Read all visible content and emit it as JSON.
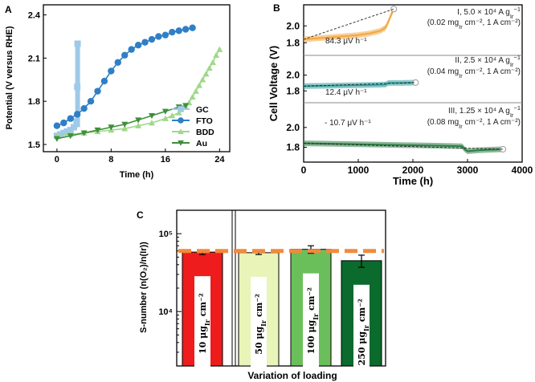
{
  "chart_data": [
    {
      "panel": "A",
      "type": "line",
      "xlabel": "Time (h)",
      "ylabel": "Potential (V versus RHE)",
      "xlim": [
        -2,
        25.5
      ],
      "ylim": [
        1.45,
        2.47
      ],
      "xticks": [
        "0",
        "8",
        "16",
        "24"
      ],
      "yticks": [
        "1.5",
        "1.8",
        "2.1",
        "2.4"
      ],
      "legend_position": "bottom-right",
      "series": [
        {
          "name": "GC",
          "color": "#9ecae8",
          "marker": "square",
          "x": [
            0,
            0.5,
            1,
            1.5,
            2,
            2.5,
            2.9,
            3.0,
            3.05
          ],
          "y": [
            1.56,
            1.57,
            1.58,
            1.59,
            1.6,
            1.62,
            1.66,
            1.9,
            2.2
          ]
        },
        {
          "name": "FTO",
          "color": "#2f7fc6",
          "marker": "circle",
          "x": [
            0,
            1,
            2,
            3,
            4,
            5,
            6,
            7,
            8,
            9,
            10,
            11,
            12,
            13,
            14,
            15,
            16,
            17,
            18,
            19,
            20
          ],
          "y": [
            1.63,
            1.65,
            1.68,
            1.71,
            1.75,
            1.8,
            1.87,
            1.94,
            2.01,
            2.07,
            2.12,
            2.16,
            2.19,
            2.21,
            2.23,
            2.25,
            2.26,
            2.28,
            2.29,
            2.3,
            2.31
          ]
        },
        {
          "name": "BDD",
          "color": "#9fd88a",
          "marker": "triangle-up",
          "x": [
            0,
            2,
            4,
            6,
            8,
            10,
            12,
            14,
            16,
            17,
            18,
            19,
            19.5,
            20,
            20.5,
            21,
            21.5,
            22,
            22.5,
            23,
            23.5,
            24
          ],
          "y": [
            1.56,
            1.57,
            1.58,
            1.59,
            1.6,
            1.61,
            1.63,
            1.65,
            1.68,
            1.7,
            1.72,
            1.76,
            1.79,
            1.83,
            1.87,
            1.91,
            1.95,
            1.99,
            2.03,
            2.07,
            2.12,
            2.16
          ]
        },
        {
          "name": "Au",
          "color": "#3f8f3a",
          "marker": "triangle-down",
          "x": [
            0,
            2,
            4,
            6,
            8,
            10,
            12,
            14,
            16,
            18,
            19
          ],
          "y": [
            1.54,
            1.56,
            1.58,
            1.6,
            1.62,
            1.64,
            1.67,
            1.7,
            1.73,
            1.76,
            1.77
          ]
        }
      ]
    },
    {
      "panel": "B",
      "type": "line",
      "xlabel": "Time (h)",
      "ylabel": "Cell Voltage (V)",
      "xlim": [
        0,
        4000
      ],
      "xticks": [
        "0",
        "1000",
        "2000",
        "3000",
        "4000"
      ],
      "subplots": [
        {
          "label_line1": "I, 5.0 × 10⁴ A g",
          "label_sub1": "Ir",
          "label_sup1": "−1",
          "label_line2": "(0.02 mg",
          "label_sub2": "Ir",
          "label_line2_rest": " cm⁻², 1 A cm⁻²)",
          "rate": "84.3 μV h⁻¹",
          "color": "#f2a640",
          "ylim": [
            1.65,
            2.25
          ],
          "yticks": [
            "2.0",
            "1.8"
          ],
          "x": [
            0,
            200,
            400,
            600,
            800,
            1000,
            1200,
            1400,
            1500,
            1550,
            1600,
            1650
          ],
          "y": [
            1.84,
            1.85,
            1.86,
            1.87,
            1.88,
            1.89,
            1.91,
            1.94,
            1.98,
            2.05,
            2.13,
            2.2
          ]
        },
        {
          "label_line1": "II, 2.5 × 10⁴ A g",
          "label_sub1": "Ir",
          "label_sup1": "−1",
          "label_line2": "(0.04 mg",
          "label_sub2": "Ir",
          "label_line2_rest": " cm⁻², 1 A cm⁻²)",
          "rate": "12.4 μV h⁻¹",
          "color": "#2f9a9a",
          "ylim": [
            1.65,
            2.25
          ],
          "yticks": [
            "2.0",
            "1.8"
          ],
          "x": [
            0,
            400,
            800,
            1200,
            1500,
            1550,
            1800,
            2050
          ],
          "y": [
            1.86,
            1.865,
            1.87,
            1.875,
            1.88,
            1.9,
            1.9,
            1.905
          ]
        },
        {
          "label_line1": "III, 1.25 × 10⁴ A g",
          "label_sub1": "Ir",
          "label_sup1": "−1",
          "label_line2": "(0.08 mg",
          "label_sub2": "Ir",
          "label_line2_rest": " cm⁻², 1 A cm⁻²)",
          "rate": "- 10.7 μV h⁻¹",
          "color": "#2e7d45",
          "ylim": [
            1.65,
            2.25
          ],
          "yticks": [
            "2.0",
            "1.8"
          ],
          "x": [
            0,
            500,
            1000,
            1500,
            2000,
            2500,
            2900,
            2950,
            3000,
            3200,
            3400,
            3650
          ],
          "y": [
            1.84,
            1.835,
            1.83,
            1.825,
            1.82,
            1.815,
            1.81,
            1.78,
            1.76,
            1.77,
            1.775,
            1.78
          ]
        }
      ]
    },
    {
      "panel": "C",
      "type": "bar",
      "ylabel": "S-number (n(O₂)/n(Ir))",
      "xlabel": "Variation of loading",
      "scale": "log",
      "ylim": [
        2000,
        200000
      ],
      "yticks": [
        "10⁵",
        "10⁴"
      ],
      "reference_value": 60000,
      "reference_color": "#f28a3c",
      "categories": [
        {
          "pre": "10 μg",
          "sub": "Ir",
          "post": " cm⁻²"
        },
        {
          "pre": "50 μg",
          "sub": "Ir",
          "post": " cm⁻²"
        },
        {
          "pre": "100 μg",
          "sub": "Ir",
          "post": " cm⁻²"
        },
        {
          "pre": "250 μg",
          "sub": "Ir",
          "post": " cm⁻²"
        }
      ],
      "values": [
        58000,
        57000,
        63000,
        45000
      ],
      "errors": [
        4000,
        3000,
        7000,
        8000
      ],
      "colors": [
        "#ee1c1c",
        "#e8f4b8",
        "#6bbf5a",
        "#0b6b2c"
      ]
    }
  ]
}
